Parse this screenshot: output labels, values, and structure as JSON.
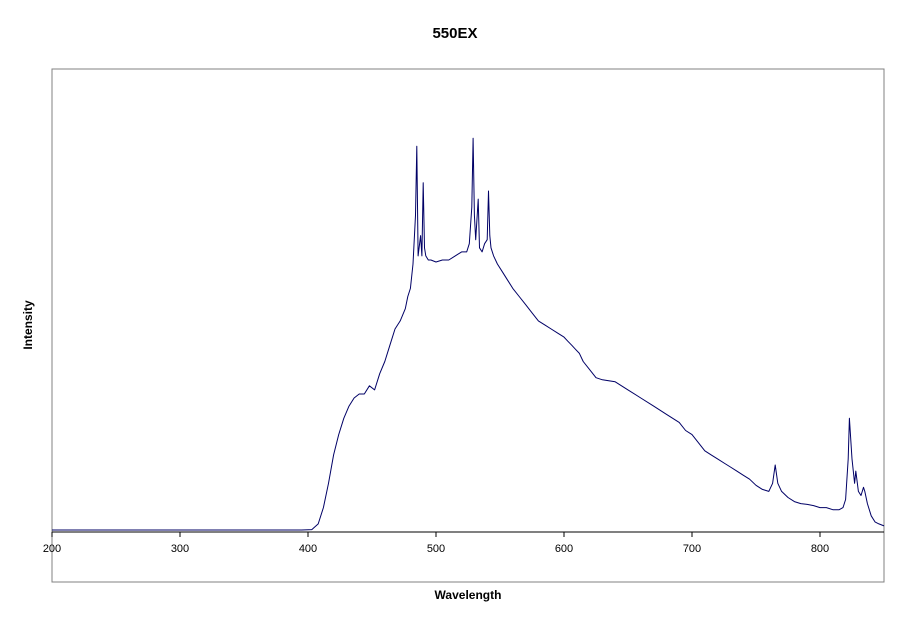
{
  "chart_data": {
    "type": "line",
    "title": "550EX",
    "xlabel": "Wavelength",
    "ylabel": "Intensity",
    "xlim": [
      200,
      850
    ],
    "ylim": [
      0,
      1
    ],
    "x_ticks": [
      "200",
      "300",
      "400",
      "500",
      "600",
      "700",
      "800"
    ],
    "y_ticks": [],
    "grid": false,
    "legend": "none",
    "colors": {
      "line": "#000066",
      "axis": "#000000",
      "frame": "#808080",
      "background": "#ffffff"
    },
    "series": [
      {
        "x": [
          200,
          250,
          300,
          350,
          395,
          403,
          408,
          412,
          416,
          420,
          424,
          428,
          432,
          436,
          440,
          444,
          448,
          452,
          456,
          460,
          464,
          468,
          472,
          476,
          478,
          480,
          482,
          484,
          485,
          486,
          488,
          489,
          490,
          491,
          492,
          494,
          496,
          500,
          505,
          510,
          515,
          520,
          524,
          526,
          528,
          529,
          530,
          531,
          533,
          534,
          536,
          538,
          540,
          541,
          542,
          543,
          545,
          548,
          552,
          556,
          560,
          565,
          570,
          575,
          580,
          585,
          590,
          595,
          600,
          603,
          606,
          609,
          612,
          615,
          620,
          625,
          630,
          640,
          650,
          660,
          670,
          680,
          690,
          695,
          700,
          705,
          710,
          715,
          720,
          725,
          730,
          735,
          740,
          745,
          750,
          755,
          760,
          763,
          765,
          767,
          770,
          775,
          780,
          785,
          790,
          795,
          800,
          805,
          810,
          815,
          818,
          820,
          822,
          823,
          825,
          827,
          828,
          830,
          832,
          834,
          835,
          837,
          840,
          843,
          846,
          850
        ],
        "y": [
          0.005,
          0.005,
          0.005,
          0.005,
          0.005,
          0.006,
          0.02,
          0.06,
          0.12,
          0.19,
          0.24,
          0.28,
          0.31,
          0.33,
          0.34,
          0.34,
          0.36,
          0.35,
          0.39,
          0.42,
          0.46,
          0.5,
          0.52,
          0.55,
          0.58,
          0.6,
          0.66,
          0.78,
          0.95,
          0.68,
          0.73,
          0.68,
          0.86,
          0.7,
          0.68,
          0.67,
          0.67,
          0.665,
          0.67,
          0.67,
          0.68,
          0.69,
          0.69,
          0.71,
          0.8,
          0.97,
          0.78,
          0.72,
          0.82,
          0.7,
          0.69,
          0.71,
          0.72,
          0.84,
          0.73,
          0.7,
          0.68,
          0.66,
          0.64,
          0.62,
          0.6,
          0.58,
          0.56,
          0.54,
          0.52,
          0.51,
          0.5,
          0.49,
          0.48,
          0.47,
          0.46,
          0.45,
          0.44,
          0.42,
          0.4,
          0.38,
          0.375,
          0.37,
          0.35,
          0.33,
          0.31,
          0.29,
          0.27,
          0.25,
          0.24,
          0.22,
          0.2,
          0.19,
          0.18,
          0.17,
          0.16,
          0.15,
          0.14,
          0.13,
          0.115,
          0.105,
          0.1,
          0.12,
          0.165,
          0.12,
          0.1,
          0.085,
          0.075,
          0.07,
          0.068,
          0.065,
          0.06,
          0.06,
          0.055,
          0.055,
          0.06,
          0.08,
          0.18,
          0.28,
          0.18,
          0.12,
          0.15,
          0.1,
          0.09,
          0.11,
          0.1,
          0.07,
          0.04,
          0.025,
          0.02,
          0.015
        ]
      }
    ]
  }
}
